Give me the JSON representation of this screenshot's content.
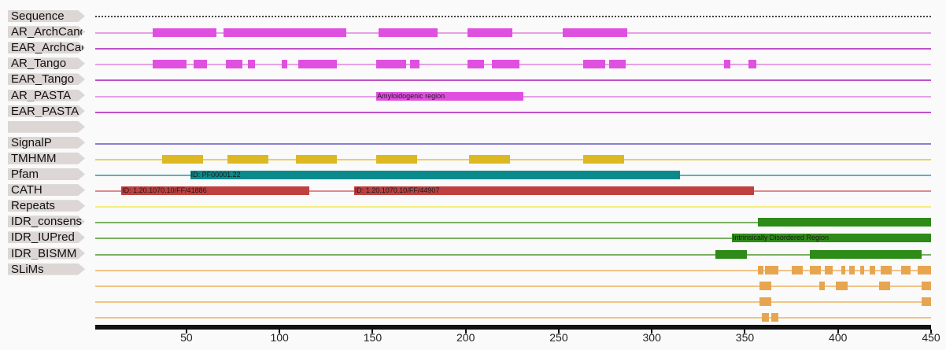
{
  "axis": {
    "min": 1,
    "max": 450,
    "ticks": [
      50,
      100,
      150,
      200,
      250,
      300,
      350,
      400,
      450
    ]
  },
  "tracks": [
    {
      "key": "sequence",
      "label": "Sequence",
      "color": "#444444",
      "style": "dots",
      "features": []
    },
    {
      "key": "ar_archcandy",
      "label": "AR_ArchCandy",
      "color": "#e050e0",
      "features": [
        [
          32,
          66
        ],
        [
          70,
          136
        ],
        [
          153,
          185
        ],
        [
          201,
          225
        ],
        [
          252,
          287
        ]
      ]
    },
    {
      "key": "ear_archcandy",
      "label": "EAR_ArchCandy",
      "color": "#c040c0",
      "features": []
    },
    {
      "key": "ar_tango",
      "label": "AR_Tango",
      "color": "#e050e0",
      "features": [
        [
          32,
          50
        ],
        [
          54,
          61
        ],
        [
          71,
          80
        ],
        [
          83,
          87
        ],
        [
          101,
          104
        ],
        [
          110,
          131
        ],
        [
          152,
          168
        ],
        [
          170,
          175
        ],
        [
          201,
          210
        ],
        [
          214,
          229
        ],
        [
          263,
          275
        ],
        [
          277,
          286
        ],
        [
          339,
          342
        ],
        [
          352,
          356
        ]
      ]
    },
    {
      "key": "ear_tango",
      "label": "EAR_Tango",
      "color": "#c040c0",
      "features": []
    },
    {
      "key": "ar_pasta",
      "label": "AR_PASTA",
      "color": "#e050e0",
      "features": [
        [
          152,
          231,
          "Amyloidogenic region"
        ]
      ]
    },
    {
      "key": "ear_pasta",
      "label": "EAR_PASTA",
      "color": "#c040c0",
      "features": []
    },
    {
      "key": "blank",
      "label": "",
      "color": "",
      "style": "none",
      "features": []
    },
    {
      "key": "signalp",
      "label": "SignalP",
      "color": "#7070c8",
      "features": []
    },
    {
      "key": "tmhmm",
      "label": "TMHMM",
      "color": "#deb820",
      "features": [
        [
          37,
          59
        ],
        [
          72,
          94
        ],
        [
          109,
          131
        ],
        [
          152,
          174
        ],
        [
          202,
          224
        ],
        [
          263,
          285
        ]
      ]
    },
    {
      "key": "pfam",
      "label": "Pfam",
      "color": "#0a8a8a",
      "features": [
        [
          52,
          315,
          "ID: PF00001.22"
        ]
      ]
    },
    {
      "key": "cath",
      "label": "CATH",
      "color": "#c04040",
      "features": [
        [
          15,
          116,
          "ID: 1.20.1070.10/FF/41886"
        ],
        [
          140,
          355,
          "ID: 1.20.1070.10/FF/44907"
        ]
      ]
    },
    {
      "key": "repeats",
      "label": "Repeats",
      "color": "#f0e070",
      "features": []
    },
    {
      "key": "idr_consens",
      "label": "IDR_consens",
      "color": "#2e8b18",
      "features": [
        [
          357,
          450
        ]
      ]
    },
    {
      "key": "idr_iupred",
      "label": "IDR_IUPred",
      "color": "#2e8b18",
      "features": [
        [
          343,
          450,
          "Intrinsically Disordered Region"
        ]
      ]
    },
    {
      "key": "idr_bismm",
      "label": "IDR_BISMM",
      "color": "#2e8b18",
      "features": [
        [
          334,
          351
        ],
        [
          385,
          445
        ]
      ]
    },
    {
      "key": "slims",
      "label": "SLiMs",
      "color": "#e8a550",
      "features": [
        [
          357,
          360
        ],
        [
          361,
          368
        ],
        [
          375,
          381
        ],
        [
          385,
          391
        ],
        [
          393,
          397
        ],
        [
          402,
          404
        ],
        [
          406,
          409
        ],
        [
          412,
          414
        ],
        [
          417,
          420
        ],
        [
          423,
          429
        ],
        [
          434,
          439
        ],
        [
          443,
          450
        ]
      ]
    },
    {
      "key": "slims_2",
      "label": "",
      "color": "#e8a550",
      "style": "nolabel",
      "features": [
        [
          358,
          364
        ],
        [
          390,
          393
        ],
        [
          399,
          405
        ],
        [
          422,
          428
        ],
        [
          445,
          450
        ]
      ]
    },
    {
      "key": "slims_3",
      "label": "",
      "color": "#e8a550",
      "style": "nolabel",
      "features": [
        [
          358,
          364
        ],
        [
          445,
          450
        ]
      ]
    },
    {
      "key": "slims_4",
      "label": "",
      "color": "#e8a550",
      "style": "nolabel",
      "features": [
        [
          359,
          363
        ],
        [
          364,
          368
        ]
      ]
    }
  ]
}
